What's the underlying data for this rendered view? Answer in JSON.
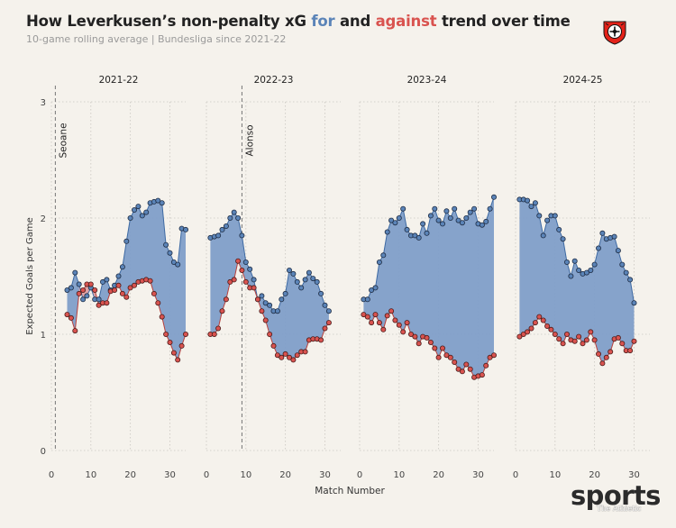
{
  "header": {
    "title_prefix": "How Leverkusen’s non-penalty xG ",
    "title_for": "for",
    "title_mid": " and ",
    "title_against": "against",
    "title_suffix": " trend over time",
    "subtitle": "10-game rolling average | Bundesliga since 2021-22"
  },
  "brand": {
    "word": "sports",
    "sub": "The Athletic"
  },
  "colors": {
    "for": "#5b84b8",
    "against": "#d9534f",
    "fill": "#7f9ec9",
    "background": "#f5f2ec"
  },
  "icons": {
    "logo": "bayer-leverkusen-crest-icon"
  },
  "chart_data": {
    "type": "line",
    "xlabel": "Match Number",
    "ylabel": "Expected Goals per Game",
    "ylim": [
      0,
      3
    ],
    "xlim": [
      0,
      34
    ],
    "yticks": [
      0,
      1,
      2,
      3
    ],
    "xticks": [
      0,
      10,
      20,
      30
    ],
    "grid": true,
    "panels": [
      {
        "season": "2021-22",
        "x_start": 4,
        "series": [
          {
            "name": "for",
            "values": [
              1.38,
              1.4,
              1.53,
              1.43,
              1.3,
              1.33,
              1.4,
              1.3,
              1.3,
              1.45,
              1.47,
              1.38,
              1.42,
              1.5,
              1.58,
              1.8,
              2.0,
              2.07,
              2.1,
              2.02,
              2.05,
              2.13,
              2.14,
              2.15,
              2.13,
              1.77,
              1.7,
              1.62,
              1.6,
              1.91,
              1.9
            ]
          },
          {
            "name": "against",
            "values": [
              1.17,
              1.14,
              1.03,
              1.35,
              1.38,
              1.43,
              1.43,
              1.38,
              1.25,
              1.27,
              1.27,
              1.37,
              1.38,
              1.42,
              1.35,
              1.32,
              1.4,
              1.42,
              1.45,
              1.46,
              1.47,
              1.46,
              1.35,
              1.27,
              1.15,
              1.0,
              0.93,
              0.84,
              0.78,
              0.9,
              1.0
            ]
          }
        ],
        "annotation": {
          "label": "Seoane",
          "x": 1
        }
      },
      {
        "season": "2022-23",
        "x_start": 1,
        "series": [
          {
            "name": "for",
            "values": [
              1.83,
              1.84,
              1.85,
              1.9,
              1.93,
              2.0,
              2.05,
              2.0,
              1.85,
              1.62,
              1.56,
              1.47,
              1.3,
              1.33,
              1.27,
              1.25,
              1.2,
              1.2,
              1.3,
              1.35,
              1.55,
              1.52,
              1.45,
              1.4,
              1.47,
              1.53,
              1.48,
              1.45,
              1.35,
              1.25,
              1.2
            ]
          },
          {
            "name": "against",
            "values": [
              1.0,
              1.0,
              1.05,
              1.2,
              1.3,
              1.45,
              1.47,
              1.63,
              1.55,
              1.45,
              1.4,
              1.4,
              1.3,
              1.2,
              1.12,
              1.0,
              0.9,
              0.82,
              0.8,
              0.83,
              0.8,
              0.78,
              0.82,
              0.85,
              0.85,
              0.95,
              0.96,
              0.96,
              0.95,
              1.05,
              1.1
            ]
          }
        ],
        "annotation": {
          "label": "Alonso",
          "x": 9
        }
      },
      {
        "season": "2023-24",
        "x_start": 1,
        "series": [
          {
            "name": "for",
            "values": [
              1.3,
              1.3,
              1.38,
              1.4,
              1.62,
              1.68,
              1.88,
              1.98,
              1.96,
              2.0,
              2.08,
              1.9,
              1.85,
              1.85,
              1.83,
              1.95,
              1.87,
              2.02,
              2.08,
              1.98,
              1.95,
              2.06,
              2.0,
              2.08,
              1.98,
              1.96,
              2.0,
              2.05,
              2.08,
              1.95,
              1.94,
              1.97,
              2.08,
              2.18
            ]
          },
          {
            "name": "against",
            "values": [
              1.17,
              1.15,
              1.1,
              1.17,
              1.1,
              1.04,
              1.16,
              1.2,
              1.12,
              1.08,
              1.02,
              1.1,
              1.0,
              0.98,
              0.92,
              0.98,
              0.97,
              0.93,
              0.88,
              0.8,
              0.88,
              0.82,
              0.8,
              0.76,
              0.7,
              0.68,
              0.74,
              0.7,
              0.63,
              0.64,
              0.65,
              0.73,
              0.8,
              0.82
            ]
          }
        ]
      },
      {
        "season": "2024-25",
        "x_start": 1,
        "series": [
          {
            "name": "for",
            "values": [
              2.16,
              2.16,
              2.15,
              2.1,
              2.13,
              2.02,
              1.85,
              1.98,
              2.02,
              2.02,
              1.9,
              1.82,
              1.62,
              1.5,
              1.63,
              1.55,
              1.52,
              1.53,
              1.55,
              1.6,
              1.74,
              1.87,
              1.82,
              1.83,
              1.84,
              1.72,
              1.6,
              1.53,
              1.47,
              1.27
            ]
          },
          {
            "name": "against",
            "values": [
              0.98,
              1.0,
              1.02,
              1.05,
              1.1,
              1.15,
              1.12,
              1.07,
              1.04,
              1.0,
              0.96,
              0.92,
              1.0,
              0.95,
              0.94,
              0.98,
              0.92,
              0.95,
              1.02,
              0.95,
              0.83,
              0.75,
              0.8,
              0.85,
              0.96,
              0.97,
              0.92,
              0.86,
              0.86,
              0.94
            ]
          }
        ]
      }
    ]
  }
}
